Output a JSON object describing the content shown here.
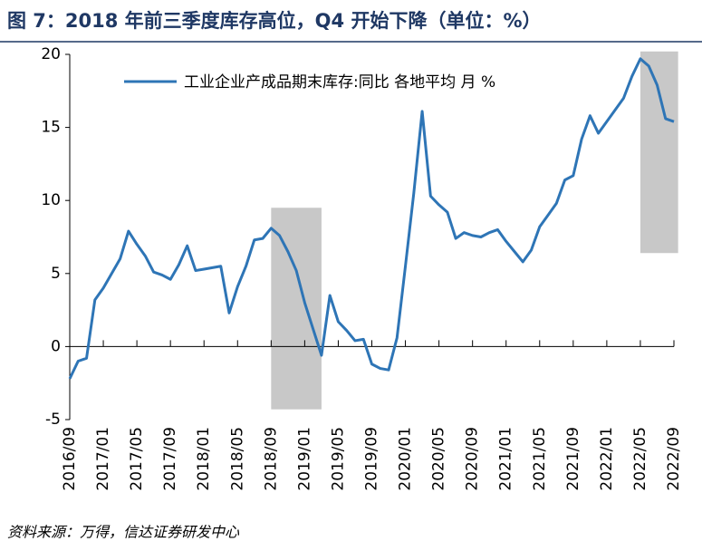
{
  "chart_data": {
    "type": "line",
    "title": "图 7：2018 年前三季度库存高位，Q4 开始下降（单位：%）",
    "source": "资料来源：万得，信达证券研发中心",
    "categories": [
      "2016/09",
      null,
      null,
      null,
      "2017/01",
      null,
      null,
      null,
      "2017/05",
      null,
      null,
      null,
      "2017/09",
      null,
      null,
      null,
      "2018/01",
      null,
      null,
      null,
      "2018/05",
      null,
      null,
      null,
      "2018/09",
      null,
      null,
      null,
      "2019/01",
      null,
      null,
      null,
      "2019/05",
      null,
      null,
      null,
      "2019/09",
      null,
      null,
      null,
      "2020/01",
      null,
      null,
      null,
      "2020/05",
      null,
      null,
      null,
      "2020/09",
      null,
      null,
      null,
      "2021/01",
      null,
      null,
      null,
      "2021/05",
      null,
      null,
      null,
      "2021/09",
      null,
      null,
      null,
      "2022/01",
      null,
      null,
      null,
      "2022/05",
      null,
      null,
      null,
      "2022/09"
    ],
    "series": [
      {
        "name": "工业企业产成品期末库存:同比 各地平均 月 %",
        "color": "#2e75b6",
        "values": [
          -2.2,
          -1.0,
          -0.8,
          3.2,
          4.0,
          5.0,
          6.0,
          7.9,
          7.0,
          6.2,
          5.1,
          4.9,
          4.6,
          5.6,
          6.9,
          5.2,
          5.3,
          5.4,
          5.5,
          2.3,
          4.1,
          5.5,
          7.3,
          7.4,
          8.1,
          7.6,
          6.5,
          5.2,
          3.0,
          1.2,
          -0.6,
          3.5,
          1.7,
          1.1,
          0.4,
          0.5,
          -1.2,
          -1.5,
          -1.6,
          0.6,
          5.5,
          10.5,
          16.1,
          10.3,
          9.7,
          9.2,
          7.4,
          7.8,
          7.6,
          7.5,
          7.8,
          8.0,
          7.2,
          6.5,
          5.8,
          6.6,
          8.2,
          9.0,
          9.8,
          11.4,
          11.7,
          14.2,
          15.8,
          14.6,
          15.4,
          16.2,
          17.0,
          18.5,
          19.7,
          19.2,
          17.9,
          15.6,
          15.4
        ]
      }
    ],
    "ylim": [
      -5,
      20
    ],
    "yticks": [
      -5,
      0,
      5,
      10,
      15,
      20
    ],
    "shaded_regions": [
      {
        "x": [
          24,
          30
        ],
        "y": [
          -4.3,
          9.5
        ],
        "color": "#c8c8c8"
      },
      {
        "x": [
          68,
          72.5
        ],
        "y": [
          6.4,
          20.2
        ],
        "color": "#c8c8c8"
      }
    ],
    "legend": "top"
  }
}
